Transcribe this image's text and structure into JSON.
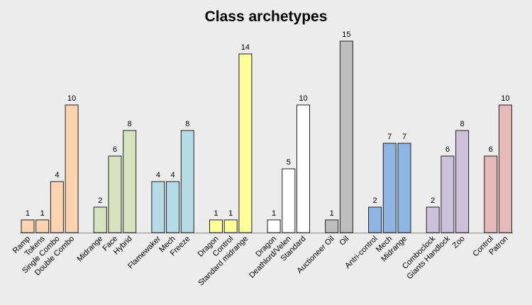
{
  "chart_data": {
    "type": "bar",
    "title": "Class archetypes",
    "xlabel": "",
    "ylabel": "",
    "ylim": [
      0,
      15
    ],
    "grid": false,
    "legend": "none",
    "groups": [
      {
        "color": "#fbd3b1",
        "categories": [
          "Ramp",
          "Tokens",
          "Single Combo",
          "Double Combo"
        ],
        "values": [
          1,
          1,
          4,
          10
        ]
      },
      {
        "color": "#d7e3bf",
        "categories": [
          "Midrange",
          "Face",
          "Hybrid"
        ],
        "values": [
          2,
          6,
          8
        ]
      },
      {
        "color": "#b4dbe6",
        "categories": [
          "Flamewaker",
          "Mech",
          "Freeze"
        ],
        "values": [
          4,
          4,
          8
        ]
      },
      {
        "color": "#fefe99",
        "categories": [
          "Dragon",
          "Control",
          "Standard midrange"
        ],
        "values": [
          1,
          1,
          14
        ]
      },
      {
        "color": "#ffffff",
        "categories": [
          "Dragon",
          "Deathlord/Velen",
          "Standard"
        ],
        "values": [
          1,
          5,
          10
        ]
      },
      {
        "color": "#bdbdbd",
        "categories": [
          "Auctioneer Oil",
          "Oil"
        ],
        "values": [
          1,
          15
        ]
      },
      {
        "color": "#8eb4e3",
        "categories": [
          "Antri-control",
          "Mech",
          "Midrange"
        ],
        "values": [
          2,
          7,
          7
        ]
      },
      {
        "color": "#ccc0da",
        "categories": [
          "Comboclock",
          "Giants Handlock",
          "Zoo"
        ],
        "values": [
          2,
          6,
          8
        ]
      },
      {
        "color": "#e6b9b8",
        "categories": [
          "Control",
          "Patron"
        ],
        "values": [
          6,
          10
        ]
      }
    ]
  }
}
